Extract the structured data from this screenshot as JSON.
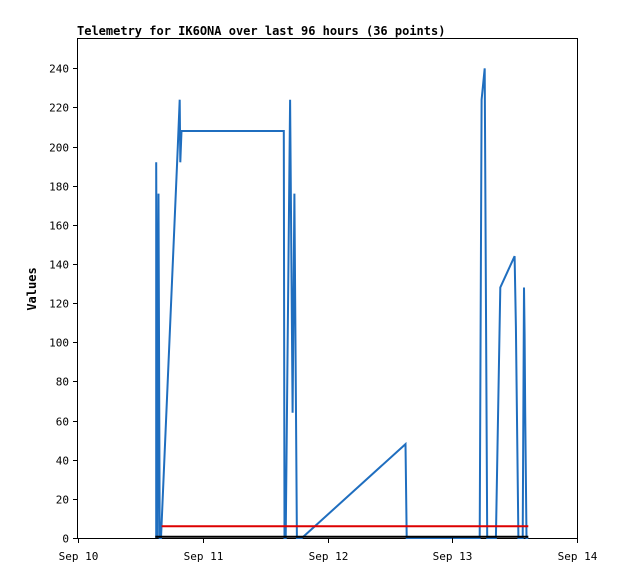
{
  "chart_data": {
    "type": "line",
    "title": "Telemetry for IK6ONA over last 96 hours (36 points)",
    "xlabel": "",
    "ylabel": "Values",
    "x_tick_labels": [
      "Sep 10",
      "Sep 11",
      "Sep 12",
      "Sep 13",
      "Sep 14"
    ],
    "y_ticks": [
      0,
      20,
      40,
      60,
      80,
      100,
      120,
      140,
      160,
      180,
      200,
      220,
      240
    ],
    "xlim_days": [
      10,
      14
    ],
    "ylim": [
      0,
      255
    ],
    "grid": false,
    "legend": "none",
    "series": [
      {
        "color": "#1f6ebf",
        "points": [
          [
            10.627,
            0
          ],
          [
            10.627,
            192
          ],
          [
            10.637,
            0
          ],
          [
            10.645,
            176
          ],
          [
            10.655,
            0
          ],
          [
            10.665,
            0
          ],
          [
            10.8,
            200
          ],
          [
            10.815,
            224
          ],
          [
            10.82,
            192
          ],
          [
            10.83,
            208
          ],
          [
            11.65,
            208
          ],
          [
            11.655,
            0
          ],
          [
            11.665,
            0
          ],
          [
            11.7,
            224
          ],
          [
            11.72,
            64
          ],
          [
            11.735,
            176
          ],
          [
            11.755,
            0
          ],
          [
            11.765,
            0
          ],
          [
            11.795,
            0
          ],
          [
            12.625,
            48
          ],
          [
            12.635,
            0
          ],
          [
            13.22,
            0
          ],
          [
            13.235,
            224
          ],
          [
            13.26,
            240
          ],
          [
            13.28,
            0
          ],
          [
            13.35,
            0
          ],
          [
            13.385,
            128
          ],
          [
            13.5,
            144
          ],
          [
            13.51,
            108
          ],
          [
            13.53,
            0
          ],
          [
            13.565,
            0
          ],
          [
            13.575,
            128
          ],
          [
            13.58,
            104
          ],
          [
            13.585,
            64
          ],
          [
            13.595,
            0
          ],
          [
            13.61,
            0
          ]
        ]
      },
      {
        "color": "#dd0000",
        "points": [
          [
            10.67,
            6
          ],
          [
            13.61,
            6
          ]
        ]
      },
      {
        "color": "#000000",
        "points": [
          [
            10.62,
            0.6
          ],
          [
            13.61,
            0.6
          ]
        ]
      }
    ]
  }
}
